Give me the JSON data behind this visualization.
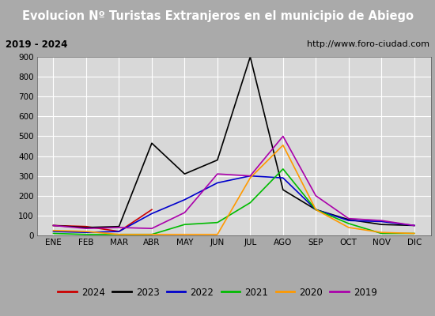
{
  "title": "Evolucion Nº Turistas Extranjeros en el municipio de Abiego",
  "subtitle_left": "2019 - 2024",
  "subtitle_right": "http://www.foro-ciudad.com",
  "months": [
    "ENE",
    "FEB",
    "MAR",
    "ABR",
    "MAY",
    "JUN",
    "JUL",
    "AGO",
    "SEP",
    "OCT",
    "NOV",
    "DIC"
  ],
  "ylim": [
    0,
    900
  ],
  "yticks": [
    0,
    100,
    200,
    300,
    400,
    500,
    600,
    700,
    800,
    900
  ],
  "series": {
    "2024": {
      "color": "#cc0000",
      "data": [
        50,
        45,
        20,
        130,
        null,
        null,
        null,
        null,
        null,
        null,
        null,
        null
      ]
    },
    "2023": {
      "color": "#000000",
      "data": [
        50,
        40,
        45,
        465,
        310,
        380,
        900,
        230,
        130,
        80,
        55,
        50
      ]
    },
    "2022": {
      "color": "#0000cc",
      "data": [
        20,
        15,
        20,
        110,
        180,
        265,
        300,
        290,
        130,
        75,
        70,
        50
      ]
    },
    "2021": {
      "color": "#00bb00",
      "data": [
        10,
        5,
        5,
        5,
        55,
        65,
        165,
        335,
        130,
        60,
        10,
        10
      ]
    },
    "2020": {
      "color": "#ff9900",
      "data": [
        25,
        20,
        5,
        5,
        5,
        5,
        290,
        455,
        130,
        40,
        15,
        10
      ]
    },
    "2019": {
      "color": "#aa00aa",
      "data": [
        50,
        35,
        40,
        35,
        115,
        310,
        300,
        500,
        200,
        85,
        75,
        50
      ]
    }
  },
  "title_bg_color": "#4477cc",
  "title_text_color": "#ffffff",
  "subtitle_bg_color": "#dddddd",
  "plot_bg_color": "#d8d8d8",
  "grid_color": "#ffffff",
  "outer_bg_color": "#aaaaaa",
  "legend_order": [
    "2024",
    "2023",
    "2022",
    "2021",
    "2020",
    "2019"
  ]
}
